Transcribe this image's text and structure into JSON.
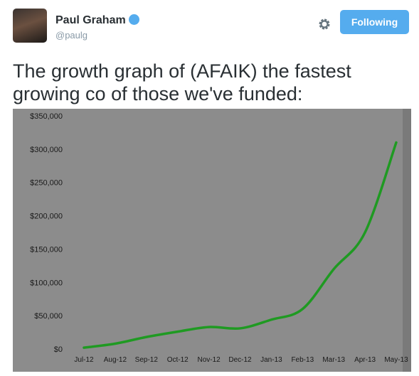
{
  "header": {
    "name": "Paul Graham",
    "handle": "@paulg",
    "button": "Following"
  },
  "tweet": {
    "lines": [
      "The growth graph of (AFAIK) the fastest",
      "growing co of those we've funded:"
    ]
  },
  "chart_data": {
    "type": "line",
    "categories": [
      "Jul-12",
      "Aug-12",
      "Sep-12",
      "Oct-12",
      "Nov-12",
      "Dec-12",
      "Jan-13",
      "Feb-13",
      "Mar-13",
      "Apr-13",
      "May-13"
    ],
    "series": [
      {
        "name": null,
        "color": "#1f9a22",
        "values": [
          2000,
          8000,
          18000,
          26000,
          33000,
          31000,
          44000,
          60000,
          120000,
          175000,
          310000
        ]
      }
    ],
    "ylim": [
      0,
      350000
    ],
    "yticks": [
      {
        "value": 0,
        "label": "$0"
      },
      {
        "value": 50000,
        "label": "$50,000"
      },
      {
        "value": 100000,
        "label": "$100,000"
      },
      {
        "value": 150000,
        "label": "$150,000"
      },
      {
        "value": 200000,
        "label": "$200,000"
      },
      {
        "value": 250000,
        "label": "$250,000"
      },
      {
        "value": 300000,
        "label": "$300,000"
      },
      {
        "value": 350000,
        "label": "$350,000"
      }
    ],
    "grid": false
  }
}
